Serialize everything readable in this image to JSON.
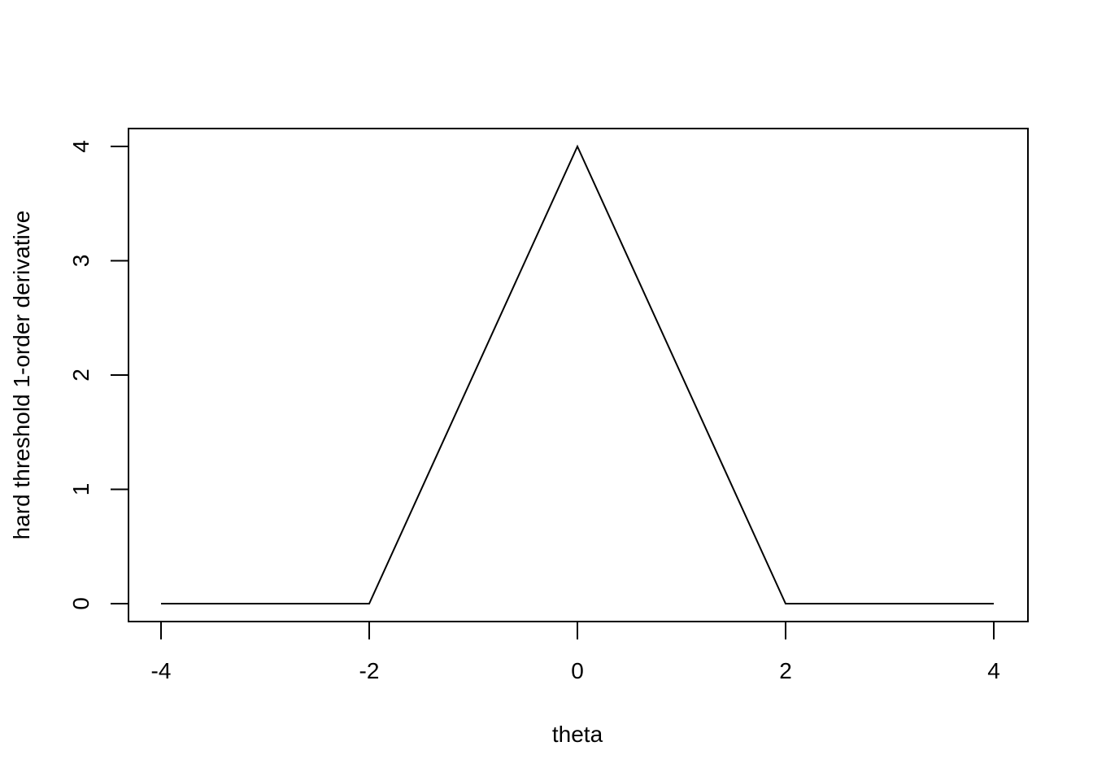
{
  "chart_data": {
    "type": "line",
    "title": "",
    "xlabel": "theta",
    "ylabel": "hard threshold 1-order derivative",
    "xlim": [
      -4,
      4
    ],
    "ylim": [
      0,
      4
    ],
    "x_ticks": [
      -4,
      -2,
      0,
      2,
      4
    ],
    "y_ticks": [
      0,
      1,
      2,
      3,
      4
    ],
    "grid": false,
    "legend": "none",
    "series": [
      {
        "color": "#000000",
        "x": [
          -4,
          -2,
          0,
          2,
          4
        ],
        "y": [
          0,
          0,
          4,
          0,
          0
        ]
      }
    ]
  }
}
